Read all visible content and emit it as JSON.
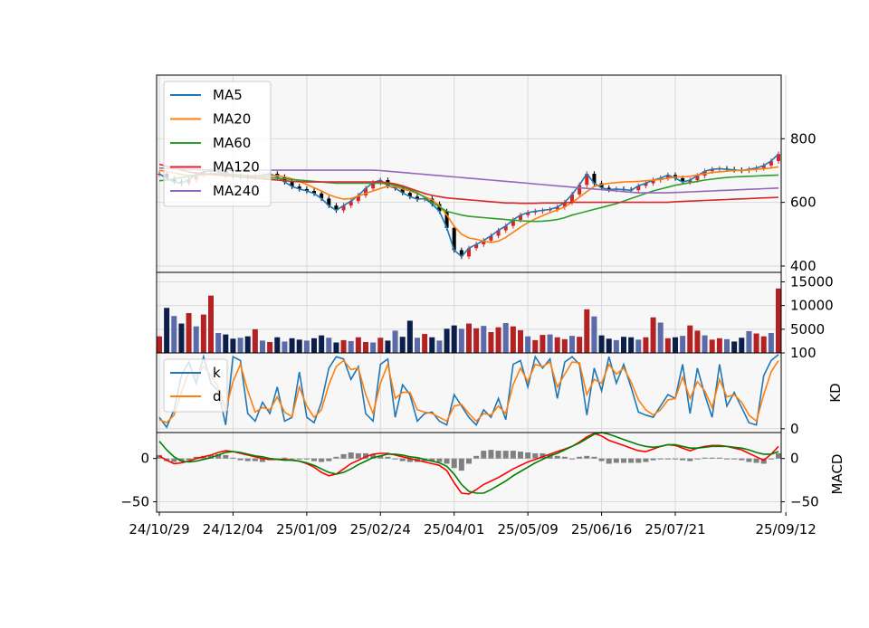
{
  "chart_data": {
    "type": "line",
    "x_dates": [
      "24/10/29",
      "24/12/04",
      "25/01/09",
      "25/02/24",
      "25/04/01",
      "25/05/09",
      "25/06/16",
      "25/07/21",
      "25/09/12"
    ],
    "x_tick_index": [
      0,
      10,
      20,
      30,
      40,
      50,
      60,
      70,
      85
    ],
    "colors": {
      "MA5": "#1f77b4",
      "MA20": "#ff7f0e",
      "MA60": "#2ca02c",
      "MA120": "#d62728",
      "MA240": "#9467bd",
      "k": "#1f77b4",
      "d": "#ff7f0e",
      "dif": "#ff0000",
      "dea": "#008000",
      "hist": "#808080",
      "up": "#d62728",
      "down": "#000000",
      "vol_up": "#b22222",
      "vol_down": "#0b1f4a",
      "vol_mid": "#5b6aa8",
      "panel_bg": "#f7f7f7",
      "grid": "#d9d9d9"
    },
    "price_panel": {
      "ylim": [
        380,
        1000
      ],
      "yticks": [
        400,
        600,
        800
      ],
      "legend_position": "upper-left",
      "series": [
        {
          "name": "MA5",
          "values": [
            690,
            675,
            665,
            660,
            672,
            688,
            696,
            700,
            698,
            686,
            683,
            680,
            678,
            682,
            686,
            690,
            680,
            664,
            650,
            642,
            636,
            628,
            612,
            590,
            575,
            590,
            604,
            622,
            644,
            662,
            670,
            652,
            645,
            630,
            618,
            610,
            612,
            595,
            572,
            520,
            450,
            430,
            456,
            468,
            480,
            495,
            512,
            526,
            545,
            560,
            568,
            572,
            575,
            578,
            585,
            600,
            625,
            655,
            690,
            660,
            646,
            640,
            642,
            640,
            638,
            652,
            660,
            670,
            676,
            686,
            676,
            664,
            670,
            684,
            698,
            704,
            706,
            704,
            702,
            700,
            704,
            708,
            716,
            730,
            752
          ]
        },
        {
          "name": "MA20",
          "values": [
            700,
            698,
            693,
            688,
            684,
            684,
            686,
            688,
            690,
            690,
            688,
            686,
            684,
            684,
            684,
            684,
            684,
            680,
            674,
            666,
            656,
            646,
            636,
            624,
            616,
            610,
            612,
            620,
            628,
            636,
            644,
            650,
            650,
            642,
            636,
            628,
            618,
            608,
            590,
            560,
            525,
            500,
            488,
            484,
            478,
            474,
            478,
            490,
            506,
            522,
            536,
            548,
            558,
            568,
            576,
            586,
            600,
            616,
            634,
            650,
            656,
            660,
            662,
            664,
            665,
            666,
            668,
            670,
            672,
            676,
            680,
            680,
            682,
            686,
            690,
            694,
            696,
            698,
            700,
            700,
            702,
            704,
            706,
            708,
            712
          ]
        },
        {
          "name": "MA60",
          "values": [
            668,
            670,
            674,
            678,
            682,
            686,
            688,
            690,
            690,
            690,
            688,
            686,
            684,
            682,
            680,
            678,
            676,
            674,
            672,
            670,
            668,
            666,
            664,
            662,
            660,
            660,
            660,
            660,
            660,
            660,
            660,
            658,
            654,
            648,
            640,
            630,
            616,
            600,
            586,
            572,
            566,
            560,
            556,
            554,
            552,
            550,
            548,
            546,
            544,
            542,
            541,
            540,
            541,
            543,
            546,
            552,
            560,
            566,
            572,
            578,
            584,
            590,
            596,
            604,
            612,
            620,
            628,
            636,
            642,
            648,
            654,
            658,
            662,
            666,
            670,
            673,
            676,
            678,
            680,
            681,
            682,
            683,
            684,
            685,
            686
          ]
        },
        {
          "name": "MA120",
          "values": [
            720,
            714,
            708,
            702,
            696,
            692,
            690,
            688,
            686,
            684,
            682,
            680,
            678,
            676,
            674,
            672,
            670,
            668,
            666,
            665,
            664,
            664,
            664,
            664,
            664,
            664,
            664,
            664,
            664,
            664,
            664,
            662,
            658,
            652,
            644,
            636,
            628,
            622,
            618,
            614,
            612,
            610,
            608,
            606,
            604,
            602,
            600,
            598,
            598,
            597,
            597,
            597,
            598,
            598,
            598,
            599,
            600,
            600,
            600,
            600,
            600,
            600,
            600,
            600,
            600,
            600,
            600,
            600,
            600,
            600,
            602,
            603,
            604,
            605,
            606,
            607,
            608,
            609,
            610,
            611,
            612,
            613,
            614,
            615,
            616
          ]
        },
        {
          "name": "MA240",
          "values": [
            708,
            707,
            706,
            705,
            704,
            703,
            702,
            702,
            701,
            701,
            701,
            701,
            701,
            701,
            701,
            701,
            701,
            701,
            701,
            701,
            701,
            701,
            701,
            701,
            701,
            701,
            701,
            701,
            701,
            701,
            700,
            698,
            696,
            694,
            692,
            690,
            688,
            686,
            684,
            682,
            680,
            678,
            676,
            674,
            672,
            670,
            668,
            666,
            664,
            662,
            660,
            658,
            656,
            654,
            652,
            650,
            648,
            646,
            644,
            642,
            640,
            638,
            636,
            634,
            632,
            630,
            630,
            630,
            630,
            630,
            631,
            632,
            633,
            634,
            635,
            636,
            637,
            638,
            639,
            640,
            641,
            642,
            643,
            644,
            645
          ]
        }
      ]
    },
    "volume_panel": {
      "ylim": [
        0,
        17000
      ],
      "yticks": [
        5000,
        10000,
        15000
      ],
      "values": [
        3500,
        9500,
        7800,
        6200,
        8400,
        5600,
        8100,
        12100,
        4200,
        3900,
        3000,
        3200,
        3500,
        5000,
        2600,
        2300,
        3300,
        2400,
        3100,
        2800,
        2600,
        3100,
        3700,
        3200,
        2200,
        2700,
        2500,
        3300,
        2300,
        2200,
        3200,
        2600,
        4700,
        3400,
        6800,
        3200,
        4000,
        3300,
        2600,
        5100,
        5800,
        5100,
        6200,
        5200,
        5700,
        4400,
        5400,
        6300,
        5600,
        4800,
        3500,
        2700,
        3800,
        3900,
        3300,
        2900,
        3600,
        3400,
        9200,
        7700,
        3700,
        3000,
        2700,
        3400,
        3300,
        2800,
        3300,
        7500,
        6400,
        3100,
        3300,
        3600,
        5800,
        4700,
        3700,
        2800,
        3100,
        2900,
        2400,
        3200,
        4600,
        4100,
        3500,
        4200,
        13600
      ]
    },
    "kd_panel": {
      "ylabel": "KD",
      "ylim": [
        -5,
        100
      ],
      "yticks": [
        0,
        100
      ],
      "legend_position": "upper-left",
      "series": [
        {
          "name": "k",
          "values": [
            15,
            2,
            25,
            70,
            88,
            60,
            95,
            60,
            50,
            5,
            95,
            90,
            20,
            10,
            35,
            20,
            55,
            10,
            15,
            75,
            15,
            8,
            35,
            80,
            95,
            92,
            65,
            82,
            20,
            10,
            85,
            92,
            15,
            58,
            45,
            10,
            20,
            22,
            10,
            5,
            45,
            30,
            15,
            5,
            25,
            15,
            40,
            12,
            85,
            90,
            55,
            95,
            80,
            92,
            40,
            88,
            95,
            85,
            18,
            80,
            50,
            95,
            60,
            85,
            55,
            22,
            18,
            15,
            30,
            45,
            40,
            85,
            20,
            80,
            45,
            15,
            85,
            30,
            48,
            28,
            8,
            5,
            70,
            90,
            98
          ]
        },
        {
          "name": "d",
          "values": [
            12,
            8,
            18,
            48,
            75,
            70,
            82,
            70,
            55,
            25,
            62,
            85,
            50,
            22,
            28,
            25,
            42,
            22,
            16,
            55,
            30,
            15,
            25,
            58,
            82,
            90,
            78,
            80,
            45,
            20,
            60,
            85,
            40,
            48,
            48,
            25,
            22,
            20,
            15,
            10,
            30,
            32,
            20,
            10,
            20,
            18,
            30,
            20,
            58,
            80,
            62,
            85,
            82,
            88,
            55,
            72,
            88,
            87,
            45,
            65,
            60,
            85,
            72,
            80,
            62,
            38,
            25,
            18,
            25,
            38,
            40,
            68,
            40,
            62,
            50,
            28,
            65,
            42,
            45,
            35,
            18,
            10,
            45,
            75,
            90
          ]
        }
      ]
    },
    "macd_panel": {
      "ylabel": "MACD",
      "ylim": [
        -62,
        30
      ],
      "yticks": [
        -50,
        0
      ],
      "dif": [
        3,
        -2,
        -6,
        -5,
        -3,
        0,
        2,
        4,
        7,
        9,
        8,
        6,
        4,
        2,
        0,
        -1,
        -1,
        -1,
        -2,
        -3,
        -6,
        -10,
        -16,
        -20,
        -18,
        -12,
        -6,
        -2,
        2,
        5,
        6,
        6,
        4,
        2,
        0,
        -2,
        -4,
        -6,
        -8,
        -14,
        -28,
        -40,
        -41,
        -36,
        -30,
        -26,
        -22,
        -17,
        -12,
        -8,
        -4,
        -1,
        2,
        5,
        8,
        11,
        14,
        19,
        25,
        29,
        26,
        21,
        18,
        15,
        12,
        9,
        8,
        11,
        14,
        16,
        15,
        12,
        9,
        12,
        14,
        15,
        15,
        14,
        12,
        10,
        6,
        2,
        -2,
        5,
        14
      ],
      "dea": [
        20,
        10,
        2,
        -3,
        -4,
        -3,
        -1,
        1,
        4,
        7,
        8,
        7,
        5,
        3,
        2,
        0,
        -1,
        -2,
        -2,
        -3,
        -5,
        -8,
        -12,
        -16,
        -18,
        -16,
        -12,
        -7,
        -3,
        1,
        3,
        5,
        5,
        4,
        2,
        1,
        -1,
        -3,
        -5,
        -9,
        -18,
        -30,
        -38,
        -40,
        -40,
        -36,
        -31,
        -26,
        -20,
        -15,
        -10,
        -5,
        -1,
        3,
        6,
        10,
        14,
        18,
        23,
        28,
        30,
        28,
        25,
        22,
        19,
        16,
        14,
        13,
        14,
        16,
        16,
        14,
        12,
        12,
        13,
        14,
        14,
        14,
        13,
        12,
        10,
        7,
        5,
        5,
        8
      ],
      "hist": [
        4,
        -3,
        -4,
        -3,
        -2,
        2,
        3,
        4,
        5,
        4,
        1,
        -2,
        -3,
        -3,
        -4,
        -2,
        0,
        1,
        0,
        0,
        -1,
        -3,
        -4,
        -3,
        2,
        5,
        7,
        6,
        6,
        5,
        3,
        2,
        -1,
        -3,
        -4,
        -4,
        -3,
        -3,
        -4,
        -6,
        -11,
        -14,
        -6,
        3,
        9,
        10,
        9,
        9,
        9,
        8,
        7,
        6,
        6,
        4,
        3,
        2,
        0,
        2,
        3,
        2,
        -3,
        -6,
        -5,
        -5,
        -5,
        -5,
        -4,
        -2,
        0,
        0,
        -1,
        -2,
        -3,
        0,
        1,
        1,
        1,
        0,
        -1,
        -2,
        -4,
        -5,
        -6,
        0,
        6
      ]
    }
  }
}
